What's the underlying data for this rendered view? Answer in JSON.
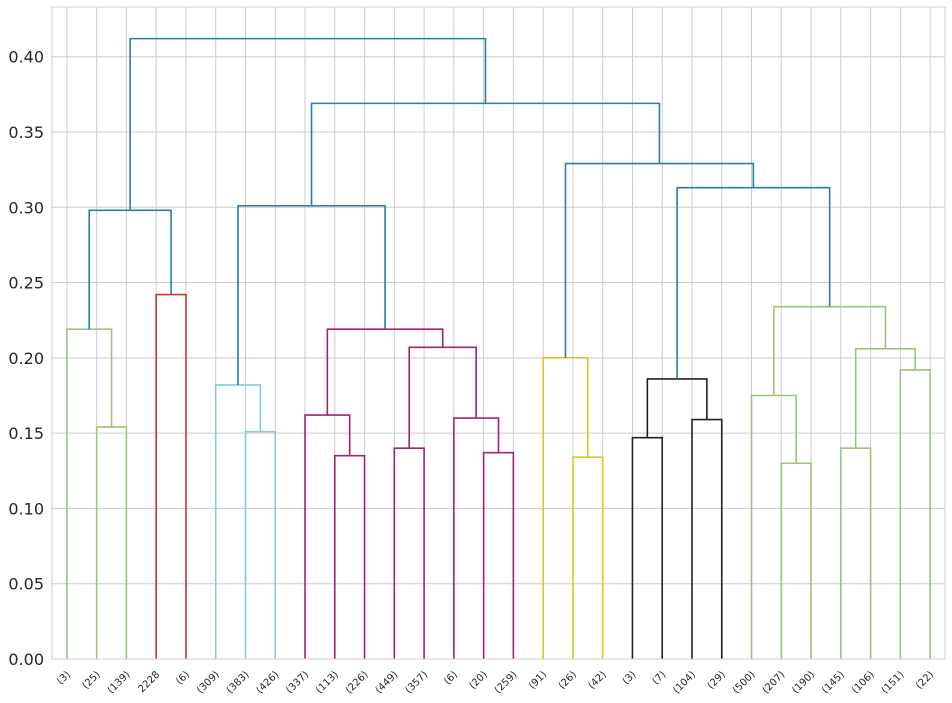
{
  "chart_data": {
    "type": "dendrogram",
    "title": "",
    "xlabel": "",
    "ylabel": "",
    "ylim": [
      0,
      0.433
    ],
    "yticks": [
      "0.00",
      "0.05",
      "0.10",
      "0.15",
      "0.20",
      "0.25",
      "0.30",
      "0.35",
      "0.40"
    ],
    "ytick_values": [
      0,
      0.05,
      0.1,
      0.15,
      0.2,
      0.25,
      0.3,
      0.35,
      0.4
    ],
    "grid": true,
    "leaves": [
      "(3)",
      "(25)",
      "(139)",
      "2228",
      "(6)",
      "(309)",
      "(383)",
      "(426)",
      "(337)",
      "(113)",
      "(226)",
      "(449)",
      "(357)",
      "(6)",
      "(20)",
      "(259)",
      "(91)",
      "(26)",
      "(42)",
      "(3)",
      "(7)",
      "(104)",
      "(29)",
      "(500)",
      "(207)",
      "(190)",
      "(145)",
      "(106)",
      "(151)",
      "(22)"
    ],
    "colors": {
      "c1": "#9dc47a",
      "c2": "#c0392b",
      "c3": "#88ccd6",
      "c4": "#a3246b",
      "c5": "#dfc52a",
      "c6": "#222222",
      "above": "#2a7fa6"
    },
    "links": [
      {
        "id": "A",
        "left": 1,
        "right": 2,
        "height": 0.154,
        "color": "c1"
      },
      {
        "id": "B",
        "left": 0,
        "right": "A",
        "height": 0.219,
        "color": "c1"
      },
      {
        "id": "C",
        "left": 3,
        "right": 4,
        "height": 0.242,
        "color": "c2"
      },
      {
        "id": "D",
        "left": "B",
        "right": "C",
        "height": 0.298,
        "color": "above"
      },
      {
        "id": "E",
        "left": 6,
        "right": 7,
        "height": 0.151,
        "color": "c3"
      },
      {
        "id": "F",
        "left": 5,
        "right": "E",
        "height": 0.182,
        "color": "c3"
      },
      {
        "id": "G",
        "left": 9,
        "right": 10,
        "height": 0.135,
        "color": "c4"
      },
      {
        "id": "H",
        "left": 8,
        "right": "G",
        "height": 0.162,
        "color": "c4"
      },
      {
        "id": "I",
        "left": 11,
        "right": 12,
        "height": 0.14,
        "color": "c4"
      },
      {
        "id": "J",
        "left": 14,
        "right": 15,
        "height": 0.137,
        "color": "c4"
      },
      {
        "id": "K",
        "left": 13,
        "right": "J",
        "height": 0.16,
        "color": "c4"
      },
      {
        "id": "L",
        "left": "I",
        "right": "K",
        "height": 0.207,
        "color": "c4"
      },
      {
        "id": "M",
        "left": "H",
        "right": "L",
        "height": 0.219,
        "color": "c4"
      },
      {
        "id": "N",
        "left": "F",
        "right": "M",
        "height": 0.301,
        "color": "above"
      },
      {
        "id": "O",
        "left": 17,
        "right": 18,
        "height": 0.134,
        "color": "c5"
      },
      {
        "id": "P",
        "left": 16,
        "right": "O",
        "height": 0.2,
        "color": "c5"
      },
      {
        "id": "Q",
        "left": 19,
        "right": 20,
        "height": 0.147,
        "color": "c6"
      },
      {
        "id": "R",
        "left": 21,
        "right": 22,
        "height": 0.159,
        "color": "c6"
      },
      {
        "id": "S",
        "left": "Q",
        "right": "R",
        "height": 0.186,
        "color": "c6"
      },
      {
        "id": "T",
        "left": 24,
        "right": 25,
        "height": 0.13,
        "color": "c1"
      },
      {
        "id": "U",
        "left": 23,
        "right": "T",
        "height": 0.175,
        "color": "c1"
      },
      {
        "id": "V",
        "left": 26,
        "right": 27,
        "height": 0.14,
        "color": "c1"
      },
      {
        "id": "W",
        "left": 28,
        "right": 29,
        "height": 0.192,
        "color": "c1"
      },
      {
        "id": "X",
        "left": "V",
        "right": "W",
        "height": 0.206,
        "color": "c1"
      },
      {
        "id": "Y",
        "left": "U",
        "right": "X",
        "height": 0.234,
        "color": "c1"
      },
      {
        "id": "Z",
        "left": "S",
        "right": "Y",
        "height": 0.313,
        "color": "above"
      },
      {
        "id": "AA",
        "left": "P",
        "right": "Z",
        "height": 0.329,
        "color": "above"
      },
      {
        "id": "AB",
        "left": "N",
        "right": "AA",
        "height": 0.369,
        "color": "above"
      },
      {
        "id": "AC",
        "left": "D",
        "right": "AB",
        "height": 0.412,
        "color": "above"
      }
    ]
  }
}
